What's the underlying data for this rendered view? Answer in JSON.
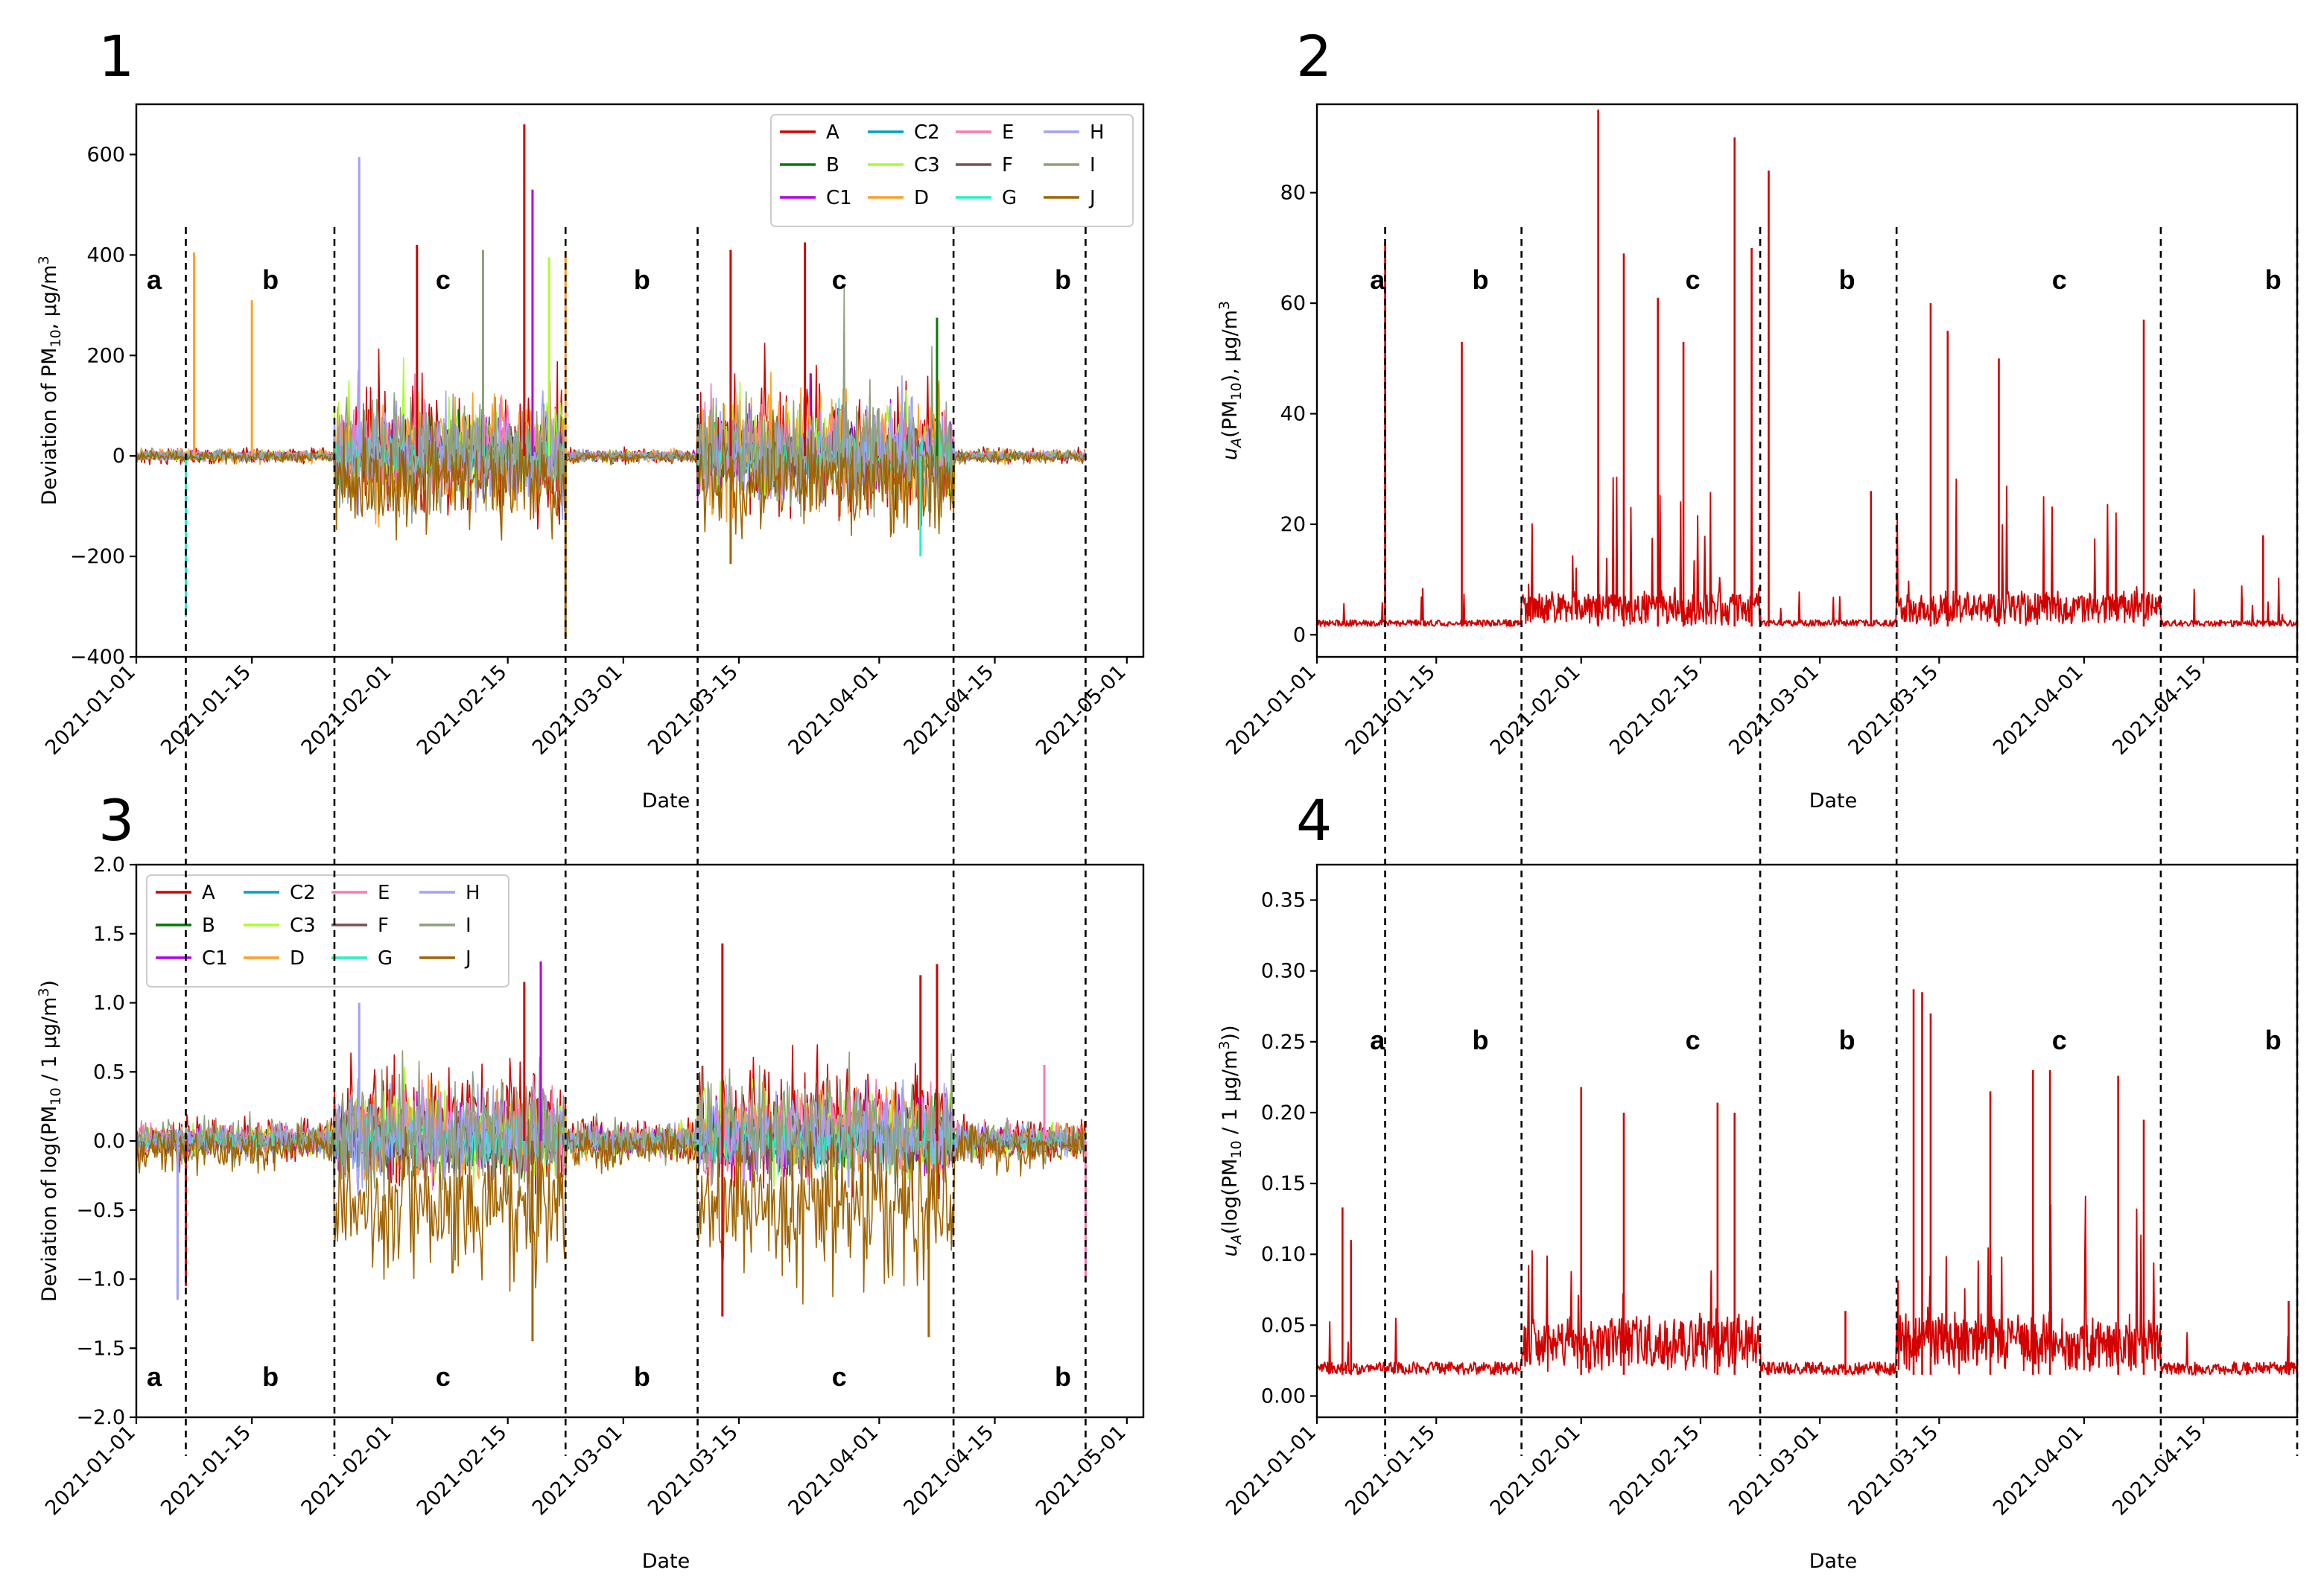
{
  "figure": {
    "panel_numbers": [
      "1",
      "2",
      "3",
      "4"
    ]
  },
  "chart_data": [
    {
      "id": "p1",
      "type": "line",
      "panel": "1",
      "title": "",
      "xlabel": "Date",
      "ylabel_main": "Deviation of PM",
      "ylabel_sub": "10",
      "ylabel_tail": ", µg/m",
      "ylabel_sup": "3",
      "xlim": [
        "2021-01-01",
        "2021-05-03"
      ],
      "ylim": [
        -400,
        700
      ],
      "yticks": [
        -400,
        -200,
        0,
        200,
        400,
        600
      ],
      "ytick_labels": [
        "−400",
        "−200",
        "0",
        "200",
        "400",
        "600"
      ],
      "xticks": [
        "2021-01-01",
        "2021-01-15",
        "2021-02-01",
        "2021-02-15",
        "2021-03-01",
        "2021-03-15",
        "2021-04-01",
        "2021-04-15",
        "2021-05-01"
      ],
      "legend_position": "top-right",
      "series": [
        {
          "name": "A",
          "color": "#d40000",
          "amp": 120,
          "offset": 5
        },
        {
          "name": "B",
          "color": "#007a00",
          "amp": 55,
          "offset": 2
        },
        {
          "name": "C1",
          "color": "#b400e6",
          "amp": 70,
          "offset": 3
        },
        {
          "name": "C2",
          "color": "#00a0c8",
          "amp": 40,
          "offset": 0
        },
        {
          "name": "C3",
          "color": "#a8ff2a",
          "amp": 80,
          "offset": 4
        },
        {
          "name": "D",
          "color": "#ffa028",
          "amp": 110,
          "offset": 6
        },
        {
          "name": "E",
          "color": "#ff78b4",
          "amp": 75,
          "offset": 4
        },
        {
          "name": "F",
          "color": "#785050",
          "amp": 45,
          "offset": -2
        },
        {
          "name": "G",
          "color": "#28f0c8",
          "amp": 40,
          "offset": 0
        },
        {
          "name": "H",
          "color": "#a0a0ff",
          "amp": 95,
          "offset": 3
        },
        {
          "name": "I",
          "color": "#8ca07a",
          "amp": 110,
          "offset": 5
        },
        {
          "name": "J",
          "color": "#a06400",
          "amp": 95,
          "offset": -35
        }
      ],
      "peaks": [
        {
          "series": "A",
          "date": "2021-02-17",
          "value": 660
        },
        {
          "series": "H",
          "date": "2021-01-28",
          "value": 595
        },
        {
          "series": "C1",
          "date": "2021-02-18",
          "value": 530
        },
        {
          "series": "A",
          "date": "2021-02-04",
          "value": 420
        },
        {
          "series": "D",
          "date": "2021-02-22",
          "value": 405
        },
        {
          "series": "A",
          "date": "2021-03-14",
          "value": 410
        },
        {
          "series": "A",
          "date": "2021-03-23",
          "value": 425
        },
        {
          "series": "I",
          "date": "2021-02-12",
          "value": 410
        },
        {
          "series": "D",
          "date": "2021-01-08",
          "value": 405
        },
        {
          "series": "C3",
          "date": "2021-02-20",
          "value": 395
        },
        {
          "series": "D",
          "date": "2021-01-15",
          "value": 310
        },
        {
          "series": "B",
          "date": "2021-04-08",
          "value": 275
        },
        {
          "series": "J",
          "date": "2021-02-22",
          "value": -360
        },
        {
          "series": "G",
          "date": "2021-01-07",
          "value": -320
        },
        {
          "series": "J",
          "date": "2021-03-14",
          "value": -215
        },
        {
          "series": "G",
          "date": "2021-04-06",
          "value": -200
        }
      ],
      "regions": [
        {
          "label": "a",
          "date": "2021-01-01"
        },
        {
          "label": "b",
          "date": "2021-01-15"
        },
        {
          "label": "c",
          "date": "2021-02-05"
        },
        {
          "label": "b",
          "date": "2021-03-01"
        },
        {
          "label": "c",
          "date": "2021-03-25"
        },
        {
          "label": "b",
          "date": "2021-04-21"
        }
      ],
      "boundaries": [
        "2021-01-07",
        "2021-01-25",
        "2021-02-22",
        "2021-03-10",
        "2021-04-10",
        "2021-04-26"
      ],
      "active_periods": [
        [
          "2021-01-25",
          "2021-02-22"
        ],
        [
          "2021-03-10",
          "2021-04-10"
        ]
      ]
    },
    {
      "id": "p2",
      "type": "line",
      "panel": "2",
      "title": "",
      "xlabel": "Date",
      "ylabel_main": "u",
      "ylabel_sub1": "A",
      "ylabel_mid": "(PM",
      "ylabel_sub": "10",
      "ylabel_tail": "), µg/m",
      "ylabel_sup": "3",
      "xlim": [
        "2021-01-01",
        "2021-04-26"
      ],
      "ylim": [
        -4,
        96
      ],
      "yticks": [
        0,
        20,
        40,
        60,
        80
      ],
      "ytick_labels": [
        "0",
        "20",
        "40",
        "60",
        "80"
      ],
      "xticks": [
        "2021-01-01",
        "2021-01-15",
        "2021-02-01",
        "2021-02-15",
        "2021-03-01",
        "2021-03-15",
        "2021-04-01",
        "2021-04-15"
      ],
      "series": [
        {
          "name": "uA",
          "color": "#d40000",
          "baseline": 1.5,
          "amp": 9
        }
      ],
      "peaks": [
        {
          "date": "2021-02-03",
          "value": 95
        },
        {
          "date": "2021-02-19",
          "value": 90
        },
        {
          "date": "2021-02-23",
          "value": 84
        },
        {
          "date": "2021-01-09",
          "value": 71
        },
        {
          "date": "2021-02-06",
          "value": 69
        },
        {
          "date": "2021-02-10",
          "value": 61
        },
        {
          "date": "2021-02-21",
          "value": 70
        },
        {
          "date": "2021-03-14",
          "value": 60
        },
        {
          "date": "2021-03-16",
          "value": 55
        },
        {
          "date": "2021-04-08",
          "value": 57
        },
        {
          "date": "2021-01-18",
          "value": 53
        },
        {
          "date": "2021-02-13",
          "value": 53
        },
        {
          "date": "2021-03-22",
          "value": 50
        },
        {
          "date": "2021-03-07",
          "value": 26
        },
        {
          "date": "2021-04-22",
          "value": 18
        }
      ],
      "regions": [
        {
          "label": "a",
          "date": "2021-01-06"
        },
        {
          "label": "b",
          "date": "2021-01-18"
        },
        {
          "label": "c",
          "date": "2021-02-12"
        },
        {
          "label": "b",
          "date": "2021-03-02"
        },
        {
          "label": "c",
          "date": "2021-03-27"
        },
        {
          "label": "b",
          "date": "2021-04-21"
        }
      ],
      "boundaries": [
        "2021-01-09",
        "2021-01-25",
        "2021-02-22",
        "2021-03-10",
        "2021-04-10",
        "2021-04-26"
      ],
      "active_periods": [
        [
          "2021-01-25",
          "2021-02-22"
        ],
        [
          "2021-03-10",
          "2021-04-10"
        ]
      ]
    },
    {
      "id": "p3",
      "type": "line",
      "panel": "3",
      "title": "",
      "xlabel": "Date",
      "ylabel_main": "Deviation of log(PM",
      "ylabel_sub": "10",
      "ylabel_tail": " / 1 µg/m",
      "ylabel_sup": "3",
      "ylabel_end": ")",
      "xlim": [
        "2021-01-01",
        "2021-05-03"
      ],
      "ylim": [
        -2.0,
        2.0
      ],
      "yticks": [
        -2.0,
        -1.5,
        -1.0,
        -0.5,
        0.0,
        0.5,
        1.0,
        1.5,
        2.0
      ],
      "ytick_labels": [
        "−2.0",
        "−1.5",
        "−1.0",
        "−0.5",
        "0.0",
        "0.5",
        "1.0",
        "1.5",
        "2.0"
      ],
      "xticks": [
        "2021-01-01",
        "2021-01-15",
        "2021-02-01",
        "2021-02-15",
        "2021-03-01",
        "2021-03-15",
        "2021-04-01",
        "2021-04-15",
        "2021-05-01"
      ],
      "legend_position": "top-left",
      "series": [
        {
          "name": "A",
          "color": "#d40000",
          "amp": 0.42,
          "offset": 0.12
        },
        {
          "name": "B",
          "color": "#007a00",
          "amp": 0.2,
          "offset": 0.0
        },
        {
          "name": "C1",
          "color": "#b400e6",
          "amp": 0.25,
          "offset": 0.02
        },
        {
          "name": "C2",
          "color": "#00a0c8",
          "amp": 0.18,
          "offset": 0.0
        },
        {
          "name": "C3",
          "color": "#a8ff2a",
          "amp": 0.3,
          "offset": 0.05
        },
        {
          "name": "D",
          "color": "#ffa028",
          "amp": 0.3,
          "offset": 0.04
        },
        {
          "name": "E",
          "color": "#ff78b4",
          "amp": 0.32,
          "offset": 0.05
        },
        {
          "name": "F",
          "color": "#785050",
          "amp": 0.2,
          "offset": -0.03
        },
        {
          "name": "G",
          "color": "#28f0c8",
          "amp": 0.18,
          "offset": 0.0
        },
        {
          "name": "H",
          "color": "#a0a0ff",
          "amp": 0.32,
          "offset": 0.03
        },
        {
          "name": "I",
          "color": "#8ca07a",
          "amp": 0.42,
          "offset": 0.06
        },
        {
          "name": "J",
          "color": "#a06400",
          "amp": 0.45,
          "offset": -0.38
        }
      ],
      "peaks": [
        {
          "series": "A",
          "date": "2021-03-13",
          "value": 1.43
        },
        {
          "series": "A",
          "date": "2021-04-08",
          "value": 1.28
        },
        {
          "series": "A",
          "date": "2021-04-06",
          "value": 1.2
        },
        {
          "series": "C1",
          "date": "2021-02-19",
          "value": 1.3
        },
        {
          "series": "A",
          "date": "2021-02-17",
          "value": 1.15
        },
        {
          "series": "H",
          "date": "2021-01-28",
          "value": 1.0
        },
        {
          "series": "E",
          "date": "2021-04-21",
          "value": 0.55
        },
        {
          "series": "H",
          "date": "2021-01-06",
          "value": -1.15
        },
        {
          "series": "A",
          "date": "2021-01-07",
          "value": -1.05
        },
        {
          "series": "J",
          "date": "2021-02-18",
          "value": -1.45
        },
        {
          "series": "J",
          "date": "2021-04-07",
          "value": -1.42
        },
        {
          "series": "A",
          "date": "2021-03-13",
          "value": -1.27
        },
        {
          "series": "E",
          "date": "2021-04-26",
          "value": -1.02
        }
      ],
      "regions": [
        {
          "label": "a",
          "date": "2021-01-01"
        },
        {
          "label": "b",
          "date": "2021-01-15"
        },
        {
          "label": "c",
          "date": "2021-02-05"
        },
        {
          "label": "b",
          "date": "2021-03-01"
        },
        {
          "label": "c",
          "date": "2021-03-25"
        },
        {
          "label": "b",
          "date": "2021-04-21"
        }
      ],
      "boundaries": [
        "2021-01-07",
        "2021-01-25",
        "2021-02-22",
        "2021-03-10",
        "2021-04-10",
        "2021-04-26"
      ],
      "active_periods": [
        [
          "2021-01-25",
          "2021-02-22"
        ],
        [
          "2021-03-10",
          "2021-04-10"
        ]
      ]
    },
    {
      "id": "p4",
      "type": "line",
      "panel": "4",
      "title": "",
      "xlabel": "Date",
      "ylabel_main": "u",
      "ylabel_sub1": "A",
      "ylabel_mid": "(log(PM",
      "ylabel_sub": "10",
      "ylabel_tail": " / 1 µg/m",
      "ylabel_sup": "3",
      "ylabel_end": "))",
      "xlim": [
        "2021-01-01",
        "2021-04-26"
      ],
      "ylim": [
        -0.015,
        0.375
      ],
      "yticks": [
        0.0,
        0.05,
        0.1,
        0.15,
        0.2,
        0.25,
        0.3,
        0.35
      ],
      "ytick_labels": [
        "0.00",
        "0.05",
        "0.10",
        "0.15",
        "0.20",
        "0.25",
        "0.30",
        "0.35"
      ],
      "xticks": [
        "2021-01-01",
        "2021-01-15",
        "2021-02-01",
        "2021-02-15",
        "2021-03-01",
        "2021-03-15",
        "2021-04-01",
        "2021-04-15"
      ],
      "series": [
        {
          "name": "uA",
          "color": "#d40000",
          "baseline": 0.015,
          "amp": 0.04
        }
      ],
      "peaks": [
        {
          "date": "2021-03-12",
          "value": 0.287
        },
        {
          "date": "2021-03-13",
          "value": 0.285
        },
        {
          "date": "2021-03-14",
          "value": 0.27
        },
        {
          "date": "2021-03-26",
          "value": 0.23
        },
        {
          "date": "2021-03-28",
          "value": 0.23
        },
        {
          "date": "2021-04-05",
          "value": 0.226
        },
        {
          "date": "2021-02-01",
          "value": 0.218
        },
        {
          "date": "2021-02-17",
          "value": 0.207
        },
        {
          "date": "2021-02-06",
          "value": 0.2
        },
        {
          "date": "2021-02-19",
          "value": 0.2
        },
        {
          "date": "2021-03-21",
          "value": 0.215
        },
        {
          "date": "2021-04-08",
          "value": 0.195
        },
        {
          "date": "2021-01-04",
          "value": 0.133
        },
        {
          "date": "2021-01-05",
          "value": 0.11
        },
        {
          "date": "2021-03-04",
          "value": 0.06
        },
        {
          "date": "2021-04-25",
          "value": 0.067
        }
      ],
      "regions": [
        {
          "label": "a",
          "date": "2021-01-06"
        },
        {
          "label": "b",
          "date": "2021-01-18"
        },
        {
          "label": "c",
          "date": "2021-02-12"
        },
        {
          "label": "b",
          "date": "2021-03-02"
        },
        {
          "label": "c",
          "date": "2021-03-27"
        },
        {
          "label": "b",
          "date": "2021-04-21"
        }
      ],
      "boundaries": [
        "2021-01-09",
        "2021-01-25",
        "2021-02-22",
        "2021-03-10",
        "2021-04-10",
        "2021-04-26"
      ],
      "active_periods": [
        [
          "2021-01-25",
          "2021-02-22"
        ],
        [
          "2021-03-10",
          "2021-04-10"
        ]
      ]
    }
  ]
}
